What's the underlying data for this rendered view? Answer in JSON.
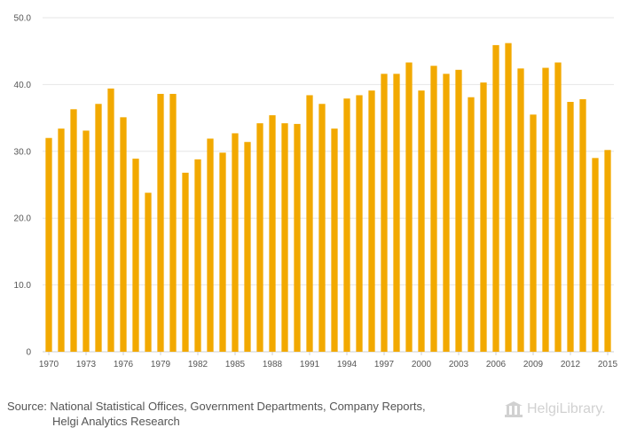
{
  "chart_data": {
    "type": "bar",
    "title": "",
    "xlabel": "",
    "ylabel": "",
    "ylim": [
      0,
      50
    ],
    "y_ticks": [
      "0",
      "10.0",
      "20.0",
      "30.0",
      "40.0",
      "50.0"
    ],
    "y_tick_values": [
      0,
      10,
      20,
      30,
      40,
      50
    ],
    "x_tick_labels": [
      "1970",
      "1973",
      "1976",
      "1979",
      "1982",
      "1985",
      "1988",
      "1991",
      "1994",
      "1997",
      "2000",
      "2003",
      "2006",
      "2009",
      "2012",
      "2015"
    ],
    "categories": [
      "1970",
      "1971",
      "1972",
      "1973",
      "1974",
      "1975",
      "1976",
      "1977",
      "1978",
      "1979",
      "1980",
      "1981",
      "1982",
      "1983",
      "1984",
      "1985",
      "1986",
      "1987",
      "1988",
      "1989",
      "1990",
      "1991",
      "1992",
      "1993",
      "1994",
      "1995",
      "1996",
      "1997",
      "1998",
      "1999",
      "2000",
      "2001",
      "2002",
      "2003",
      "2004",
      "2005",
      "2006",
      "2007",
      "2008",
      "2009",
      "2010",
      "2011",
      "2012",
      "2013",
      "2014",
      "2015"
    ],
    "values": [
      32.0,
      33.4,
      36.3,
      33.1,
      37.1,
      39.4,
      35.1,
      28.9,
      23.8,
      38.6,
      38.6,
      26.8,
      28.8,
      31.9,
      29.8,
      32.7,
      31.4,
      34.2,
      35.4,
      34.2,
      34.1,
      38.4,
      37.1,
      33.4,
      37.9,
      38.4,
      39.1,
      41.6,
      41.6,
      43.3,
      39.1,
      42.8,
      41.6,
      42.2,
      38.1,
      40.3,
      45.9,
      46.2,
      42.4,
      35.5,
      42.5,
      43.3,
      37.4,
      37.8,
      29.0,
      30.2
    ],
    "bar_color": "#f2a900",
    "grid": true
  },
  "footer": {
    "source_line1": "Source: National Statistical Offices, Government Departments, Company Reports,",
    "source_line2": "Helgi Analytics Research",
    "logo_text": "HelgiLibrary."
  }
}
